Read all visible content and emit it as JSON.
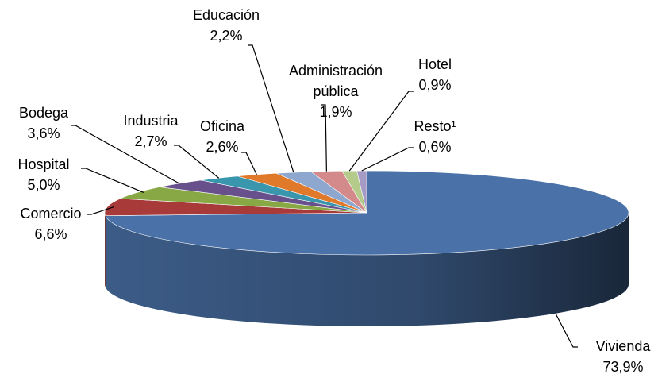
{
  "chart_data": {
    "type": "pie",
    "categories": [
      "Vivienda",
      "Comercio",
      "Hospital",
      "Bodega",
      "Industria",
      "Oficina",
      "Educación",
      "Administración pública",
      "Hotel",
      "Resto¹"
    ],
    "values": [
      73.9,
      6.6,
      5.0,
      3.6,
      2.7,
      2.6,
      2.2,
      1.9,
      0.9,
      0.6
    ],
    "value_labels": [
      "73,9%",
      "6,6%",
      "5,0%",
      "3,6%",
      "2,7%",
      "2,6%",
      "2,2%",
      "1,9%",
      "0,9%",
      "0,6%"
    ],
    "colors": [
      "#4a72a8",
      "#a83a3a",
      "#87a845",
      "#67508c",
      "#3996ad",
      "#e07a2a",
      "#8ea7cf",
      "#d48a8a",
      "#b4cb8c",
      "#a59bc4"
    ]
  }
}
